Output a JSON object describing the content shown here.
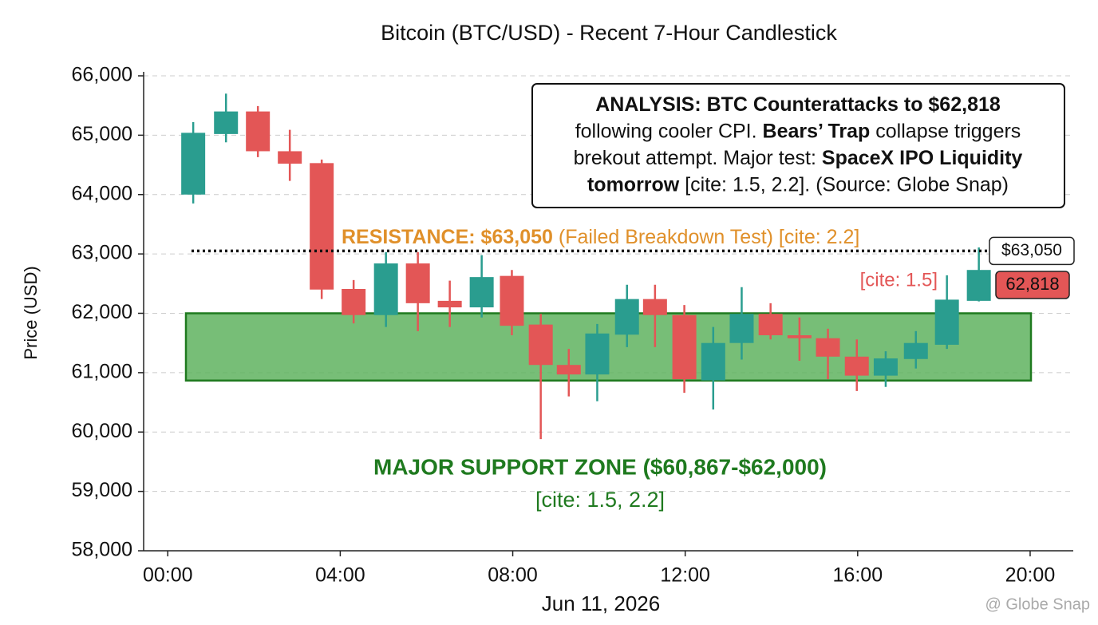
{
  "chart_data": {
    "type": "candlestick",
    "title": "Bitcoin (BTC/USD) - Recent 7-Hour Candlestick",
    "y_label": "Price (USD)",
    "x_label": "Jun 11, 2026",
    "up_color": "#2a9d8f",
    "down_color": "#e35656",
    "grid": true,
    "xlim": [
      -0.56,
      21.0
    ],
    "xticks": [
      {
        "value": 0,
        "label": "00:00"
      },
      {
        "value": 4,
        "label": "04:00"
      },
      {
        "value": 8,
        "label": "08:00"
      },
      {
        "value": 12,
        "label": "12:00"
      },
      {
        "value": 16,
        "label": "16:00"
      },
      {
        "value": 20,
        "label": "20:00"
      }
    ],
    "ylim": [
      58000,
      66000
    ],
    "yticks": [
      {
        "value": 58000,
        "label": "58,000"
      },
      {
        "value": 59000,
        "label": "59,000"
      },
      {
        "value": 60000,
        "label": "60,000"
      },
      {
        "value": 61000,
        "label": "61,000"
      },
      {
        "value": 62000,
        "label": "62,000"
      },
      {
        "value": 63000,
        "label": "63,000"
      },
      {
        "value": 64000,
        "label": "64,000"
      },
      {
        "value": 65000,
        "label": "65,000"
      },
      {
        "value": 66000,
        "label": "66,000"
      }
    ],
    "x": [
      0.59,
      1.35,
      2.09,
      2.83,
      3.57,
      4.31,
      5.06,
      5.8,
      6.54,
      7.28,
      7.98,
      8.65,
      9.3,
      9.96,
      10.65,
      11.3,
      11.98,
      12.65,
      13.31,
      13.98,
      14.65,
      15.31,
      15.98,
      16.65,
      17.35,
      18.07,
      18.81
    ],
    "open": [
      64000,
      65020,
      65400,
      64730,
      64530,
      62410,
      61970,
      62840,
      62210,
      62100,
      62630,
      61810,
      61130,
      60970,
      61640,
      62240,
      61970,
      60870,
      61500,
      61990,
      61630,
      61580,
      61270,
      60950,
      61230,
      61470,
      62210
    ],
    "high": [
      65220,
      65700,
      65490,
      65090,
      64590,
      62560,
      63030,
      63030,
      62550,
      62980,
      62730,
      61990,
      61400,
      61820,
      62480,
      62480,
      62140,
      61770,
      62440,
      62170,
      61930,
      61740,
      61560,
      61360,
      61700,
      62640,
      63110
    ],
    "low": [
      63850,
      64880,
      64630,
      64230,
      62240,
      61830,
      61770,
      61700,
      61770,
      61930,
      61630,
      59880,
      60600,
      60520,
      61430,
      61430,
      60660,
      60380,
      61220,
      61560,
      61200,
      60890,
      60690,
      60760,
      61070,
      61400,
      62200
    ],
    "close": [
      65040,
      65400,
      64730,
      64520,
      62400,
      61970,
      62840,
      62170,
      62100,
      62610,
      61790,
      61130,
      60970,
      61660,
      62240,
      61970,
      60890,
      61500,
      61990,
      61630,
      61580,
      61270,
      60950,
      61240,
      61500,
      62230,
      62730
    ],
    "resistance": {
      "value": 63050,
      "label": "$63,050",
      "title": "RESISTANCE: $63,050",
      "note": " (Failed Breakdown Test) [cite: 2.2]",
      "color": "#e0902a"
    },
    "price_tag": {
      "value": 62818,
      "label": "62,818",
      "cite": "[cite: 1.5]"
    },
    "support_zone": {
      "low": 60867,
      "high": 62000,
      "title": "MAJOR SUPPORT ZONE ($60,867-$62,000)",
      "cite": "[cite: 1.5, 2.2]",
      "color": "#1f7a1f"
    },
    "analysis": [
      [
        {
          "text": "ANALYSIS: BTC Counterattacks to $62,818",
          "bold": true
        }
      ],
      [
        {
          "text": "following cooler CPI. ",
          "bold": false
        },
        {
          "text": "Bears’ Trap",
          "bold": true
        },
        {
          "text": " collapse triggers",
          "bold": false
        }
      ],
      [
        {
          "text": "brekout attempt. Major test: ",
          "bold": false
        },
        {
          "text": "SpaceX IPO Liquidity",
          "bold": true
        }
      ],
      [
        {
          "text": "tomorrow",
          "bold": true
        },
        {
          "text": " [cite: 1.5, 2.2]. (Source: Globe Snap)",
          "bold": false
        }
      ]
    ],
    "watermark": "@ Globe Snap"
  }
}
